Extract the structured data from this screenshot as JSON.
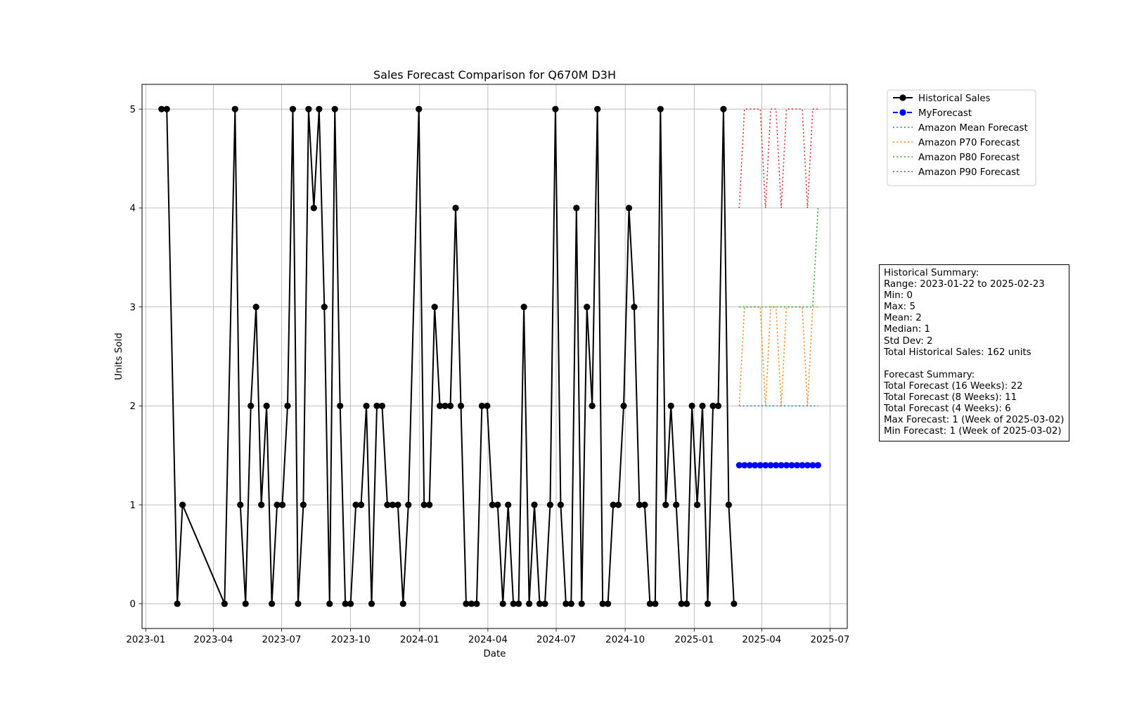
{
  "chart_data": {
    "type": "line",
    "title": "Sales Forecast Comparison for Q670M D3H",
    "xlabel": "Date",
    "ylabel": "Units Sold",
    "xlim": [
      "2022-12-27",
      "2025-07-24"
    ],
    "ylim": [
      -0.25,
      5.25
    ],
    "yticks": [
      0,
      1,
      2,
      3,
      4,
      5
    ],
    "xticks": [
      "2023-01",
      "2023-04",
      "2023-07",
      "2023-10",
      "2024-01",
      "2024-04",
      "2024-07",
      "2024-10",
      "2025-01",
      "2025-04",
      "2025-07"
    ],
    "grid": true,
    "legend_position": "outside-right-top",
    "series": [
      {
        "name": "Historical Sales",
        "style": "solid-marker",
        "color": "#000000",
        "x": [
          "2023-01-22",
          "2023-01-29",
          "2023-02-12",
          "2023-02-19",
          "2023-04-16",
          "2023-04-30",
          "2023-05-07",
          "2023-05-14",
          "2023-05-21",
          "2023-05-28",
          "2023-06-04",
          "2023-06-11",
          "2023-06-18",
          "2023-06-25",
          "2023-07-02",
          "2023-07-09",
          "2023-07-16",
          "2023-07-23",
          "2023-07-30",
          "2023-08-06",
          "2023-08-13",
          "2023-08-20",
          "2023-08-27",
          "2023-09-03",
          "2023-09-10",
          "2023-09-17",
          "2023-09-24",
          "2023-10-01",
          "2023-10-08",
          "2023-10-15",
          "2023-10-22",
          "2023-10-29",
          "2023-11-05",
          "2023-11-12",
          "2023-11-19",
          "2023-11-26",
          "2023-12-03",
          "2023-12-10",
          "2023-12-17",
          "2023-12-31",
          "2024-01-07",
          "2024-01-14",
          "2024-01-21",
          "2024-01-28",
          "2024-02-04",
          "2024-02-11",
          "2024-02-18",
          "2024-02-25",
          "2024-03-03",
          "2024-03-10",
          "2024-03-17",
          "2024-03-24",
          "2024-03-31",
          "2024-04-07",
          "2024-04-14",
          "2024-04-21",
          "2024-04-28",
          "2024-05-05",
          "2024-05-12",
          "2024-05-19",
          "2024-05-26",
          "2024-06-02",
          "2024-06-09",
          "2024-06-16",
          "2024-06-23",
          "2024-06-30",
          "2024-07-07",
          "2024-07-14",
          "2024-07-21",
          "2024-07-28",
          "2024-08-04",
          "2024-08-11",
          "2024-08-18",
          "2024-08-25",
          "2024-09-01",
          "2024-09-08",
          "2024-09-15",
          "2024-09-22",
          "2024-09-29",
          "2024-10-06",
          "2024-10-13",
          "2024-10-20",
          "2024-10-27",
          "2024-11-03",
          "2024-11-10",
          "2024-11-17",
          "2024-11-24",
          "2024-12-01",
          "2024-12-08",
          "2024-12-15",
          "2024-12-22",
          "2024-12-29",
          "2025-01-05",
          "2025-01-12",
          "2025-01-19",
          "2025-01-26",
          "2025-02-02",
          "2025-02-09",
          "2025-02-16",
          "2025-02-23"
        ],
        "y": [
          5,
          5,
          0,
          1,
          0,
          5,
          1,
          0,
          2,
          3,
          1,
          2,
          0,
          1,
          1,
          2,
          5,
          0,
          1,
          5,
          4,
          5,
          3,
          0,
          5,
          2,
          0,
          0,
          1,
          1,
          2,
          0,
          2,
          2,
          1,
          1,
          1,
          0,
          1,
          5,
          1,
          1,
          3,
          2,
          2,
          2,
          4,
          2,
          0,
          0,
          0,
          2,
          2,
          1,
          1,
          0,
          1,
          0,
          0,
          3,
          0,
          1,
          0,
          0,
          1,
          5,
          1,
          0,
          0,
          4,
          0,
          3,
          2,
          5,
          0,
          0,
          1,
          1,
          2,
          4,
          3,
          1,
          1,
          0,
          0,
          5,
          1,
          2,
          1,
          0,
          0,
          2,
          1,
          2,
          0,
          2,
          2,
          5,
          1,
          0
        ]
      },
      {
        "name": "MyForecast",
        "style": "dashed-marker",
        "color": "#0000ff",
        "x": [
          "2025-03-02",
          "2025-03-09",
          "2025-03-16",
          "2025-03-23",
          "2025-03-30",
          "2025-04-06",
          "2025-04-13",
          "2025-04-20",
          "2025-04-27",
          "2025-05-04",
          "2025-05-11",
          "2025-05-18",
          "2025-05-25",
          "2025-06-01",
          "2025-06-08",
          "2025-06-15"
        ],
        "y": [
          1.4,
          1.4,
          1.4,
          1.4,
          1.4,
          1.4,
          1.4,
          1.4,
          1.4,
          1.4,
          1.4,
          1.4,
          1.4,
          1.4,
          1.4,
          1.4
        ]
      },
      {
        "name": "Amazon Mean Forecast",
        "style": "dotted",
        "color": "#1f77b4",
        "x": [
          "2025-03-02",
          "2025-03-09",
          "2025-03-16",
          "2025-03-23",
          "2025-03-30",
          "2025-04-06",
          "2025-04-13",
          "2025-04-20",
          "2025-04-27",
          "2025-05-04",
          "2025-05-11",
          "2025-05-18",
          "2025-05-25",
          "2025-06-01",
          "2025-06-08",
          "2025-06-15"
        ],
        "y": [
          2,
          2,
          2,
          2,
          2,
          2,
          2,
          2,
          2,
          2,
          2,
          2,
          2,
          2,
          2,
          2
        ]
      },
      {
        "name": "Amazon P70 Forecast",
        "style": "dotted",
        "color": "#ff7f0e",
        "x": [
          "2025-03-02",
          "2025-03-09",
          "2025-03-16",
          "2025-03-23",
          "2025-03-30",
          "2025-04-06",
          "2025-04-13",
          "2025-04-20",
          "2025-04-27",
          "2025-05-04",
          "2025-05-11",
          "2025-05-18",
          "2025-05-25",
          "2025-06-01",
          "2025-06-08",
          "2025-06-15"
        ],
        "y": [
          2,
          3,
          3,
          3,
          3,
          2,
          3,
          3,
          2,
          3,
          3,
          3,
          3,
          2,
          3,
          3
        ]
      },
      {
        "name": "Amazon P80 Forecast",
        "style": "dotted",
        "color": "#2ca02c",
        "x": [
          "2025-03-02",
          "2025-03-09",
          "2025-03-16",
          "2025-03-23",
          "2025-03-30",
          "2025-04-06",
          "2025-04-13",
          "2025-04-20",
          "2025-04-27",
          "2025-05-04",
          "2025-05-11",
          "2025-05-18",
          "2025-05-25",
          "2025-06-01",
          "2025-06-08",
          "2025-06-15"
        ],
        "y": [
          3,
          3,
          3,
          3,
          3,
          3,
          3,
          3,
          3,
          3,
          3,
          3,
          3,
          3,
          3,
          4
        ]
      },
      {
        "name": "Amazon P90 Forecast",
        "style": "dotted",
        "color": "#d62728",
        "x": [
          "2025-03-02",
          "2025-03-09",
          "2025-03-16",
          "2025-03-23",
          "2025-03-30",
          "2025-04-06",
          "2025-04-13",
          "2025-04-20",
          "2025-04-27",
          "2025-05-04",
          "2025-05-11",
          "2025-05-18",
          "2025-05-25",
          "2025-06-01",
          "2025-06-08",
          "2025-06-15"
        ],
        "y": [
          4,
          5,
          5,
          5,
          5,
          4,
          5,
          5,
          4,
          5,
          5,
          5,
          5,
          4,
          5,
          5
        ]
      }
    ]
  },
  "summary": {
    "lines": [
      "Historical Summary:",
      "Range: 2023-01-22 to 2025-02-23",
      "Min: 0",
      "Max: 5",
      "Mean: 2",
      "Median: 1",
      "Std Dev: 2",
      "Total Historical Sales: 162 units",
      "",
      "Forecast Summary:",
      "Total Forecast (16 Weeks): 22",
      "Total Forecast (8 Weeks): 11",
      "Total Forecast (4 Weeks): 6",
      "Max Forecast: 1 (Week of 2025-03-02)",
      "Min Forecast: 1 (Week of 2025-03-02)"
    ]
  }
}
